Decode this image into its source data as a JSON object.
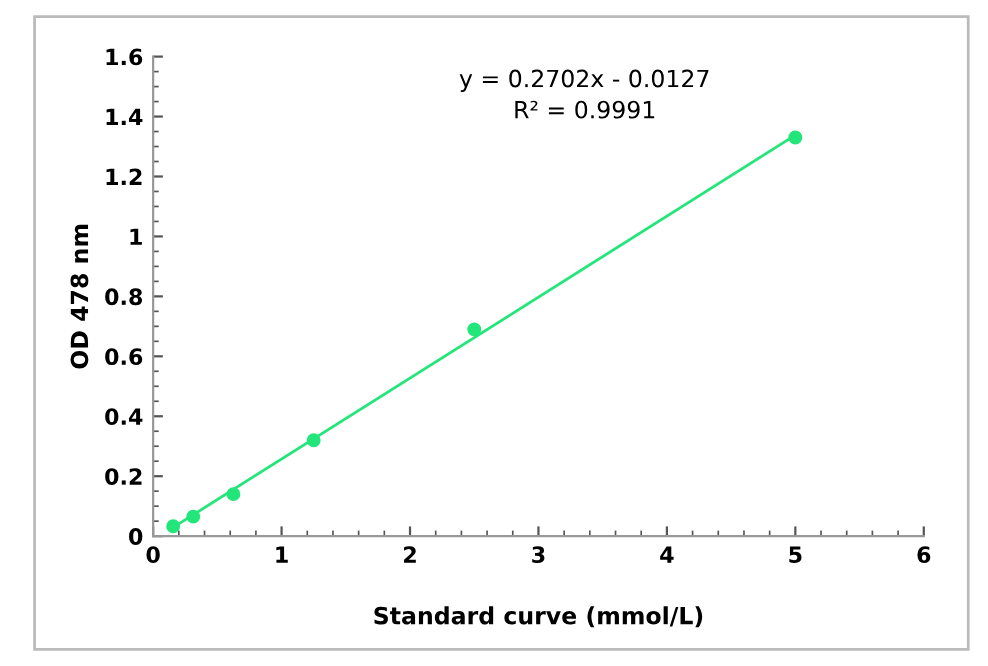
{
  "chart_data": {
    "type": "scatter",
    "xlabel": "Standard curve (mmol/L)",
    "ylabel": "OD 478 nm",
    "annotations": [
      "y = 0.2702x - 0.0127",
      "R² = 0.9991"
    ],
    "series": [
      {
        "color": "#22e67a",
        "x": [
          0.156,
          0.3125,
          0.625,
          1.25,
          2.5,
          5
        ],
        "values": [
          0.033,
          0.065,
          0.14,
          0.32,
          0.69,
          1.33
        ],
        "marker": "circle"
      },
      {
        "type": "line",
        "color": "#22e67a",
        "x": [
          0.156,
          5
        ],
        "values": [
          0.029,
          1.338
        ],
        "marker": "none",
        "line_style": "solid"
      }
    ],
    "xlim": [
      0,
      6
    ],
    "xticks": [
      0,
      1,
      2,
      3,
      4,
      5,
      6
    ],
    "ylim": [
      0,
      1.6
    ],
    "yticks": [
      0,
      0.2,
      0.4,
      0.6,
      0.8,
      1,
      1.2,
      1.4,
      1.6
    ],
    "grid": false,
    "legend": false
  }
}
